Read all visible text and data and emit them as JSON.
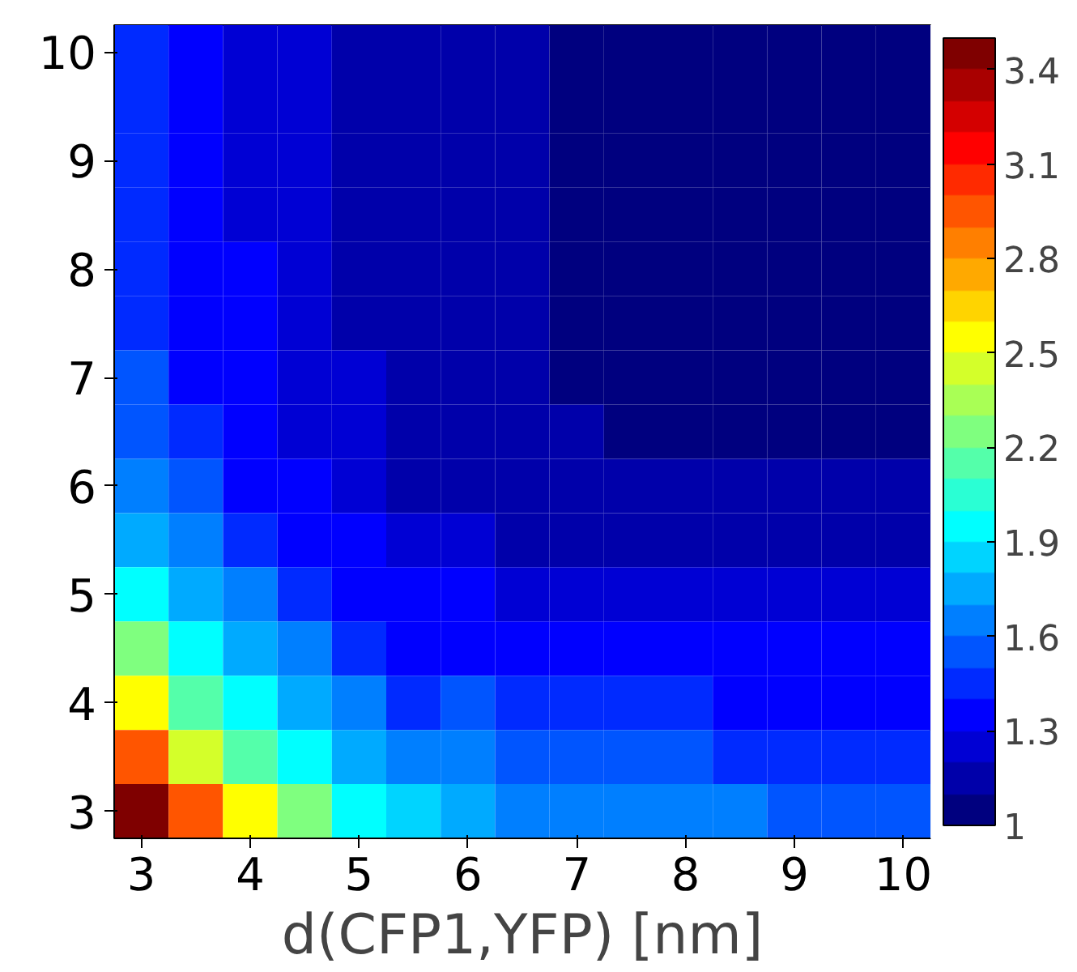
{
  "chart_data": {
    "type": "heatmap",
    "xlabel": "d(CFP1,YFP) [nm]",
    "categories": [
      "3",
      null,
      "4",
      null,
      "5",
      null,
      "6",
      null,
      "7",
      null,
      "8",
      null,
      "9",
      null,
      "10"
    ],
    "y_categories": [
      "10",
      null,
      "9",
      null,
      "8",
      null,
      "7",
      null,
      "6",
      null,
      "5",
      null,
      "4",
      null,
      "3"
    ],
    "cells": [
      [
        1.44,
        1.34,
        1.27,
        1.22,
        1.18,
        1.14,
        1.11,
        1.1,
        1.06,
        1.06,
        1.06,
        1.06,
        1.06,
        1.06,
        1.06
      ],
      [
        1.45,
        1.35,
        1.28,
        1.22,
        1.18,
        1.14,
        1.12,
        1.1,
        1.06,
        1.06,
        1.06,
        1.06,
        1.06,
        1.06,
        1.06
      ],
      [
        1.45,
        1.35,
        1.28,
        1.23,
        1.18,
        1.15,
        1.12,
        1.1,
        1.06,
        1.06,
        1.06,
        1.06,
        1.06,
        1.06,
        1.06
      ],
      [
        1.47,
        1.36,
        1.29,
        1.23,
        1.19,
        1.15,
        1.12,
        1.11,
        1.06,
        1.06,
        1.06,
        1.06,
        1.06,
        1.06,
        1.06
      ],
      [
        1.48,
        1.37,
        1.3,
        1.24,
        1.19,
        1.15,
        1.12,
        1.11,
        1.06,
        1.06,
        1.06,
        1.06,
        1.06,
        1.06,
        1.06
      ],
      [
        1.49,
        1.38,
        1.3,
        1.25,
        1.2,
        1.16,
        1.13,
        1.11,
        1.06,
        1.06,
        1.06,
        1.06,
        1.06,
        1.06,
        1.06
      ],
      [
        1.51,
        1.4,
        1.32,
        1.26,
        1.21,
        1.16,
        1.13,
        1.12,
        1.08,
        1.08,
        1.08,
        1.08,
        1.08,
        1.08,
        1.08
      ],
      [
        1.56,
        1.44,
        1.35,
        1.28,
        1.23,
        1.18,
        1.15,
        1.13,
        1.1,
        1.09,
        1.09,
        1.08,
        1.08,
        1.08,
        1.08
      ],
      [
        1.64,
        1.5,
        1.4,
        1.32,
        1.25,
        1.2,
        1.17,
        1.15,
        1.13,
        1.13,
        1.12,
        1.12,
        1.12,
        1.12,
        1.11
      ],
      [
        1.78,
        1.61,
        1.49,
        1.39,
        1.31,
        1.25,
        1.22,
        1.2,
        1.19,
        1.18,
        1.17,
        1.17,
        1.16,
        1.16,
        1.16
      ],
      [
        1.98,
        1.76,
        1.61,
        1.49,
        1.39,
        1.31,
        1.3,
        1.27,
        1.25,
        1.24,
        1.23,
        1.23,
        1.22,
        1.22,
        1.22
      ],
      [
        2.23,
        1.96,
        1.76,
        1.61,
        1.49,
        1.39,
        1.4,
        1.36,
        1.34,
        1.32,
        1.31,
        1.31,
        1.3,
        1.3,
        1.3
      ],
      [
        2.52,
        2.19,
        1.94,
        1.76,
        1.61,
        1.49,
        1.5,
        1.46,
        1.44,
        1.42,
        1.41,
        1.4,
        1.4,
        1.4,
        1.4
      ],
      [
        2.91,
        2.49,
        2.19,
        1.96,
        1.76,
        1.61,
        1.62,
        1.56,
        1.53,
        1.51,
        1.5,
        1.49,
        1.48,
        1.48,
        1.47
      ],
      [
        3.45,
        2.91,
        2.52,
        2.23,
        1.98,
        1.82,
        1.75,
        1.7,
        1.67,
        1.64,
        1.62,
        1.6,
        1.58,
        1.56,
        1.55
      ]
    ],
    "clim": [
      1.0,
      3.5
    ],
    "cticks": [
      1.0,
      1.3,
      1.6,
      1.9,
      2.2,
      2.5,
      2.8,
      3.1,
      3.4
    ]
  }
}
